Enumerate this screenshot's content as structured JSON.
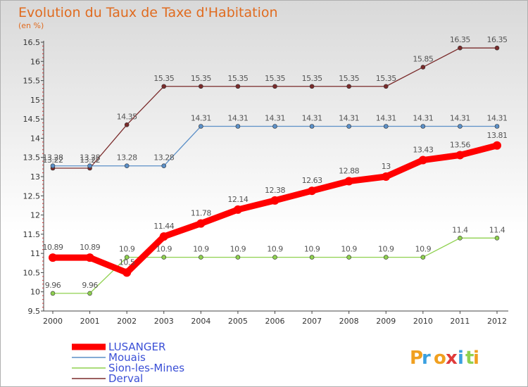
{
  "chart_data": {
    "type": "line",
    "title": "Evolution du Taux de Taxe d'Habitation",
    "subtitle": "(en %)",
    "x": [
      2000,
      2001,
      2002,
      2003,
      2004,
      2005,
      2006,
      2007,
      2008,
      2009,
      2010,
      2011,
      2012
    ],
    "x_tick_labels": [
      "2000",
      "2001",
      "2002",
      "2003",
      "2004",
      "2005",
      "2006",
      "2007",
      "2008",
      "2009",
      "2010",
      "2011",
      "2012"
    ],
    "ylim": [
      9.5,
      16.5
    ],
    "y_ticks": [
      9.5,
      10,
      10.5,
      11,
      11.5,
      12,
      12.5,
      13,
      13.5,
      14,
      14.5,
      15,
      15.5,
      16,
      16.5
    ],
    "y_tick_labels": [
      "9.5",
      "10",
      "10.5",
      "11",
      "11.5",
      "12",
      "12.5",
      "13",
      "13.5",
      "14",
      "14.5",
      "15",
      "15.5",
      "16",
      "16.5"
    ],
    "grid": false,
    "legend_position": "bottom-left",
    "series": [
      {
        "name": "Derval",
        "color": "#7a2b2b",
        "values": [
          13.22,
          13.22,
          14.35,
          15.35,
          15.35,
          15.35,
          15.35,
          15.35,
          15.35,
          15.35,
          15.85,
          16.35,
          16.35
        ],
        "labels": [
          "13.22",
          "13.22",
          "14.35",
          "15.35",
          "15.35",
          "15.35",
          "15.35",
          "15.35",
          "15.35",
          "15.35",
          "15.85",
          "16.35",
          "16.35"
        ]
      },
      {
        "name": "Mouais",
        "color": "#5b8fc7",
        "values": [
          13.28,
          13.28,
          13.28,
          13.28,
          14.31,
          14.31,
          14.31,
          14.31,
          14.31,
          14.31,
          14.31,
          14.31,
          14.31
        ],
        "labels": [
          "13.28",
          "13.28",
          "13.28",
          "13.28",
          "14.31",
          "14.31",
          "14.31",
          "14.31",
          "14.31",
          "14.31",
          "14.31",
          "14.31",
          "14.31"
        ]
      },
      {
        "name": "Sion-les-Mines",
        "color": "#8fd14f",
        "values": [
          9.96,
          9.96,
          10.9,
          10.9,
          10.9,
          10.9,
          10.9,
          10.9,
          10.9,
          10.9,
          10.9,
          11.4,
          11.4
        ],
        "labels": [
          "9.96",
          "9.96",
          "10.9",
          "10.9",
          "10.9",
          "10.9",
          "10.9",
          "10.9",
          "10.9",
          "10.9",
          "10.9",
          "11.4",
          "11.4"
        ]
      },
      {
        "name": "LUSANGER",
        "color": "#ff0000",
        "values": [
          10.89,
          10.89,
          10.5,
          11.44,
          11.78,
          12.14,
          12.38,
          12.63,
          12.88,
          13,
          13.43,
          13.56,
          13.81
        ],
        "labels": [
          "10.89",
          "10.89",
          "10.5",
          "11.44",
          "11.78",
          "12.14",
          "12.38",
          "12.63",
          "12.88",
          "13",
          "13.43",
          "13.56",
          "13.81"
        ]
      }
    ],
    "legend": [
      "LUSANGER",
      "Mouais",
      "Sion-les-Mines",
      "Derval"
    ]
  },
  "logo": {
    "letters": [
      "P",
      "r",
      "o",
      "x",
      "i",
      "t",
      "i"
    ],
    "colors": [
      "#f0a020",
      "#3aa0e0",
      "#f0a020",
      "#e03a3a",
      "#3aa0e0",
      "#8fd14f",
      "#f0a020"
    ]
  }
}
